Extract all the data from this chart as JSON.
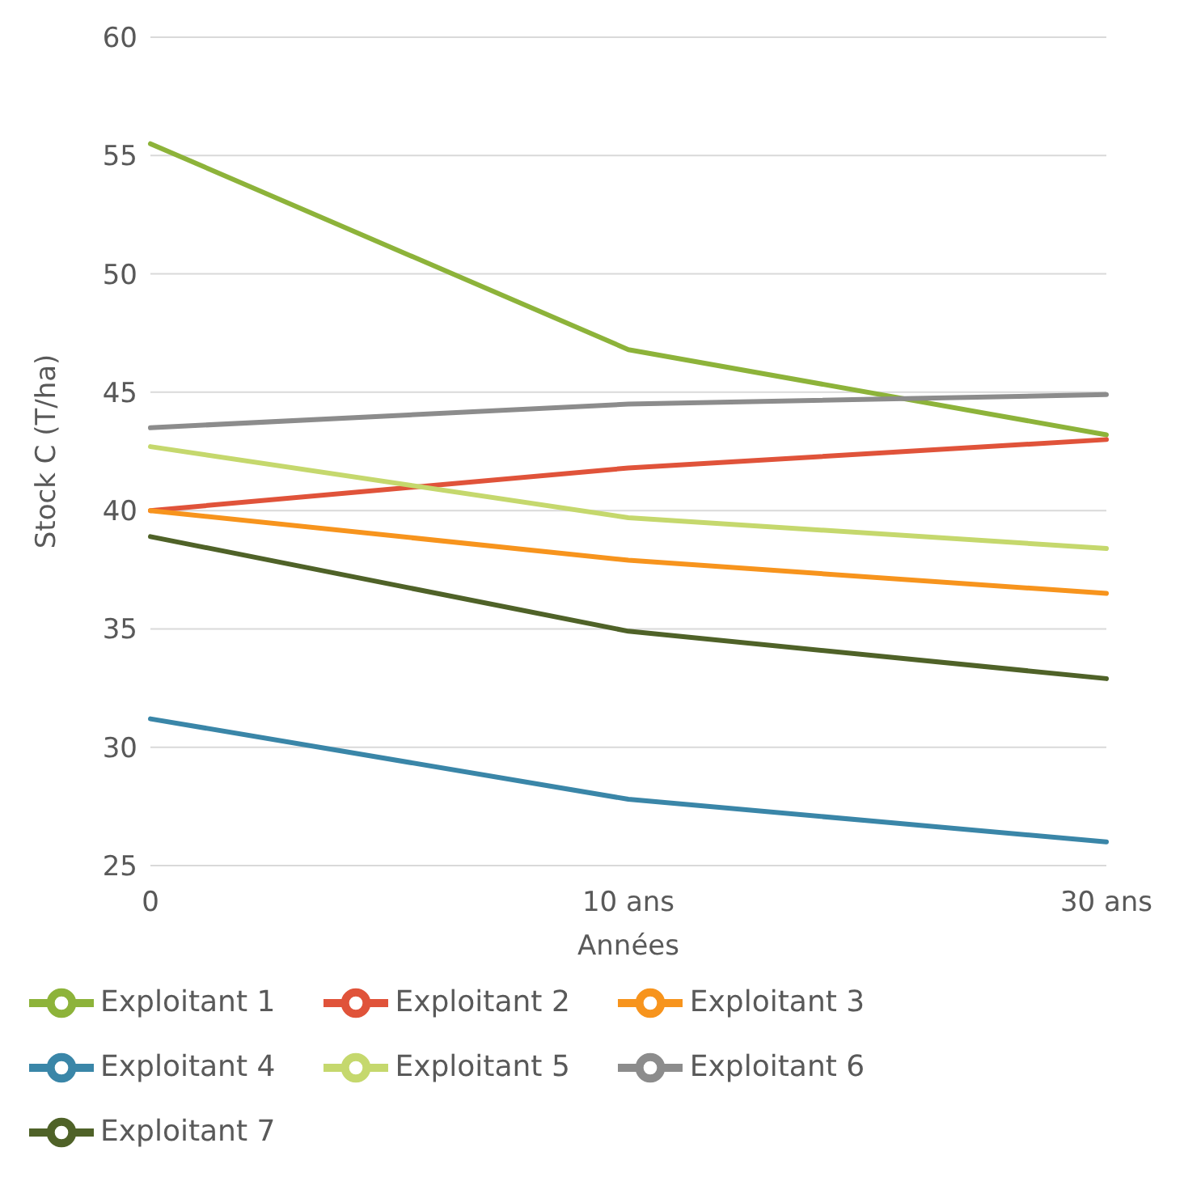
{
  "chart_data": {
    "type": "line",
    "xlabel": "Années",
    "ylabel": "Stock C (T/ha)",
    "categories": [
      "0",
      "10 ans",
      "30 ans"
    ],
    "series": [
      {
        "name": "Exploitant 1",
        "color": "#8db33a",
        "values": [
          55.5,
          46.8,
          43.2
        ]
      },
      {
        "name": "Exploitant 2",
        "color": "#e0533a",
        "values": [
          40.0,
          41.8,
          43.0
        ]
      },
      {
        "name": "Exploitant 3",
        "color": "#f7941d",
        "values": [
          40.0,
          37.9,
          36.5
        ]
      },
      {
        "name": "Exploitant 4",
        "color": "#3a86a8",
        "values": [
          31.2,
          27.8,
          26.0
        ]
      },
      {
        "name": "Exploitant 5",
        "color": "#c5d86d",
        "values": [
          42.7,
          39.7,
          38.4
        ]
      },
      {
        "name": "Exploitant 6",
        "color": "#8c8c8c",
        "values": [
          43.5,
          44.5,
          44.9
        ]
      },
      {
        "name": "Exploitant 7",
        "color": "#4f6228",
        "values": [
          38.9,
          34.9,
          32.9
        ]
      }
    ],
    "ylim": [
      25,
      60
    ],
    "yticks": [
      25,
      30,
      35,
      40,
      45,
      50,
      55,
      60
    ],
    "grid": "y",
    "legend": "bottom",
    "marker": "none",
    "line_style": "solid"
  }
}
